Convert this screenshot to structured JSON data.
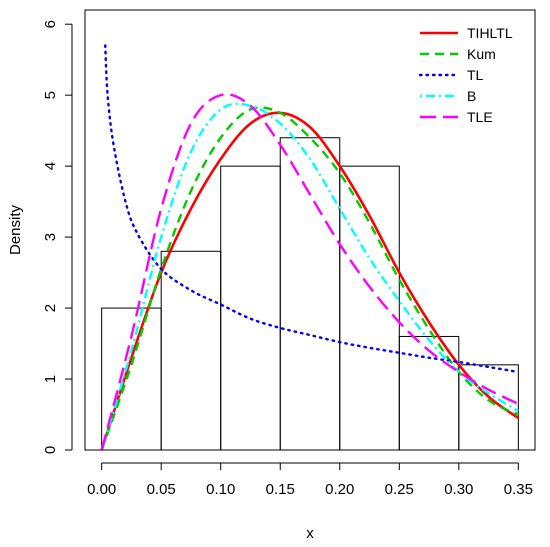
{
  "chart_data": {
    "type": "area",
    "title": "",
    "xlabel": "x",
    "ylabel": "Density",
    "xlim": [
      -0.014,
      0.364
    ],
    "ylim": [
      0,
      6.2
    ],
    "xticks": [
      "0.00",
      "0.05",
      "0.10",
      "0.15",
      "0.20",
      "0.25",
      "0.30",
      "0.35"
    ],
    "yticks": [
      "0",
      "1",
      "2",
      "3",
      "4",
      "5",
      "6"
    ],
    "histogram": {
      "bin_edges": [
        0.0,
        0.05,
        0.1,
        0.15,
        0.2,
        0.25,
        0.3,
        0.35
      ],
      "densities": [
        2.0,
        2.8,
        4.0,
        4.4,
        4.0,
        1.6,
        1.2
      ]
    },
    "legend_position": "top-right",
    "series": [
      {
        "name": "TIHLTL",
        "color": "#ff0000",
        "style": "solid",
        "x": [
          0.0,
          0.025,
          0.05,
          0.075,
          0.1,
          0.125,
          0.15,
          0.175,
          0.2,
          0.225,
          0.25,
          0.275,
          0.3,
          0.325,
          0.35
        ],
        "y": [
          0.0,
          1.3,
          2.5,
          3.4,
          4.1,
          4.6,
          4.75,
          4.55,
          4.0,
          3.3,
          2.5,
          1.8,
          1.2,
          0.75,
          0.45
        ]
      },
      {
        "name": "Kum",
        "color": "#00cc00",
        "style": "dashed",
        "x": [
          0.0,
          0.025,
          0.05,
          0.075,
          0.1,
          0.125,
          0.15,
          0.175,
          0.2,
          0.225,
          0.25,
          0.275,
          0.3,
          0.325,
          0.35
        ],
        "y": [
          0.0,
          1.2,
          2.55,
          3.65,
          4.4,
          4.8,
          4.75,
          4.4,
          3.9,
          3.2,
          2.4,
          1.7,
          1.1,
          0.7,
          0.5
        ]
      },
      {
        "name": "TL",
        "color": "#0000ff",
        "style": "dotted",
        "x": [
          0.003,
          0.005,
          0.01,
          0.02,
          0.03,
          0.05,
          0.075,
          0.1,
          0.125,
          0.15,
          0.175,
          0.2,
          0.225,
          0.25,
          0.275,
          0.3,
          0.325,
          0.35
        ],
        "y": [
          5.7,
          5.0,
          4.3,
          3.5,
          3.05,
          2.55,
          2.25,
          2.05,
          1.85,
          1.72,
          1.62,
          1.52,
          1.44,
          1.37,
          1.3,
          1.24,
          1.17,
          1.1
        ]
      },
      {
        "name": "B",
        "color": "#00ffff",
        "style": "dotdash",
        "x": [
          0.0,
          0.025,
          0.05,
          0.075,
          0.1,
          0.125,
          0.15,
          0.175,
          0.2,
          0.225,
          0.25,
          0.275,
          0.3,
          0.325,
          0.35
        ],
        "y": [
          0.0,
          1.4,
          3.0,
          4.2,
          4.8,
          4.85,
          4.6,
          4.1,
          3.4,
          2.7,
          2.1,
          1.55,
          1.1,
          0.8,
          0.55
        ]
      },
      {
        "name": "TLE",
        "color": "#ff00ff",
        "style": "longdash",
        "x": [
          0.0,
          0.025,
          0.05,
          0.075,
          0.1,
          0.125,
          0.15,
          0.175,
          0.2,
          0.225,
          0.25,
          0.275,
          0.3,
          0.325,
          0.35
        ],
        "y": [
          0.0,
          1.6,
          3.4,
          4.6,
          5.0,
          4.85,
          4.3,
          3.6,
          2.9,
          2.3,
          1.8,
          1.4,
          1.1,
          0.85,
          0.65
        ]
      }
    ]
  }
}
